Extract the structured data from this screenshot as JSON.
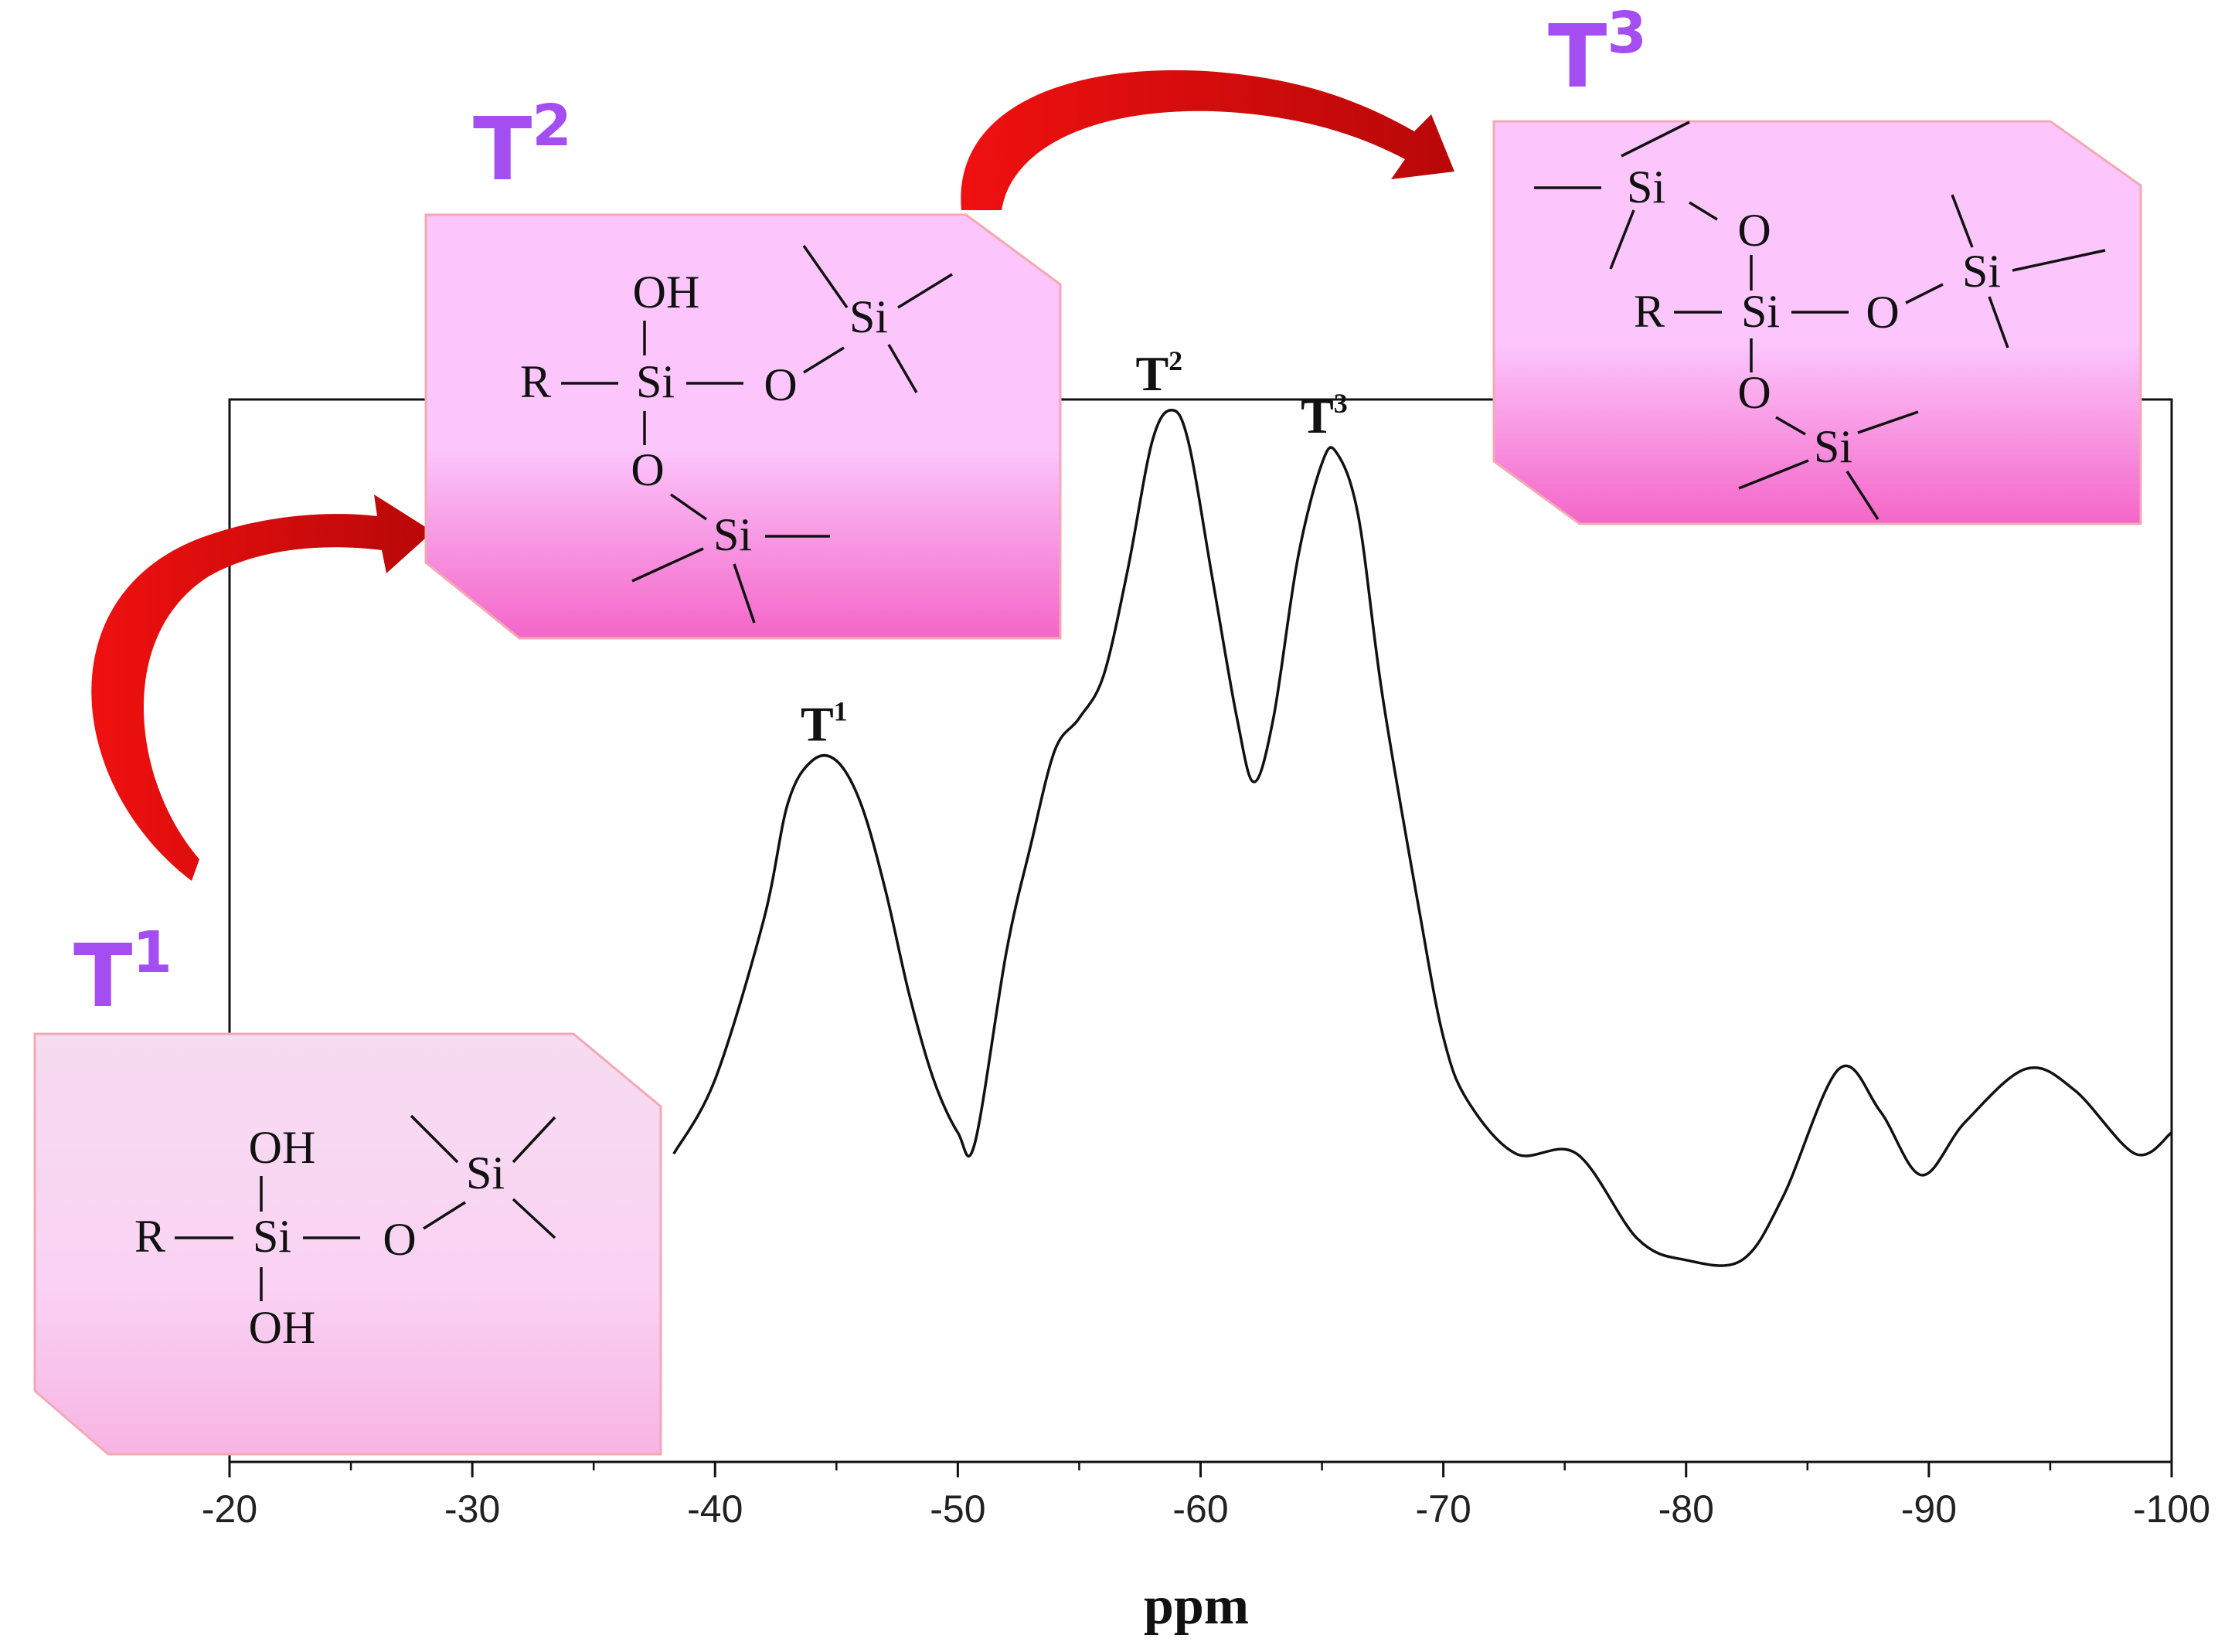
{
  "chart_data": {
    "type": "line",
    "title": "",
    "xlabel": "ppm",
    "ylabel": "",
    "xlim": [
      -20,
      -100
    ],
    "x_reversed_visual": true,
    "xticks": [
      -20,
      -30,
      -40,
      -50,
      -60,
      -70,
      -80,
      -90,
      -100
    ],
    "xtick_labels": [
      "-20",
      "-30",
      "-40",
      "-50",
      "-60",
      "-70",
      "-80",
      "-90",
      "-100"
    ],
    "grid": false,
    "legend": "none",
    "series": [
      {
        "x": [
          -38.3,
          -40,
          -42,
          -43,
          -44,
          -45,
          -46,
          -47,
          -48,
          -49,
          -50,
          -50.7,
          -52,
          -53,
          -54,
          -55,
          -56,
          -57,
          -58,
          -58.8,
          -59.5,
          -60.5,
          -61.5,
          -62.2,
          -63,
          -64,
          -65,
          -65.6,
          -66.5,
          -67.5,
          -69,
          -70,
          -71,
          -73,
          -75.5,
          -78,
          -80,
          -82.3,
          -84,
          -86.3,
          -88,
          -89.7,
          -91.5,
          -94,
          -96,
          -98.5,
          -100
        ],
        "y": [
          0.29,
          0.36,
          0.51,
          0.62,
          0.66,
          0.66,
          0.62,
          0.54,
          0.44,
          0.36,
          0.31,
          0.3,
          0.48,
          0.58,
          0.67,
          0.7,
          0.74,
          0.84,
          0.96,
          0.99,
          0.96,
          0.83,
          0.7,
          0.64,
          0.7,
          0.85,
          0.94,
          0.95,
          0.89,
          0.72,
          0.52,
          0.4,
          0.34,
          0.29,
          0.29,
          0.21,
          0.19,
          0.19,
          0.25,
          0.37,
          0.33,
          0.27,
          0.32,
          0.37,
          0.35,
          0.29,
          0.31
        ]
      }
    ],
    "peak_labels": [
      {
        "main": "T",
        "sup": "1",
        "x": -45,
        "y": 0.66
      },
      {
        "main": "T",
        "sup": "2",
        "x": -58.8,
        "y": 0.99
      },
      {
        "main": "T",
        "sup": "3",
        "x": -65.6,
        "y": 0.95
      }
    ]
  },
  "structures": {
    "t1": {
      "label_main": "T",
      "label_sup": "1",
      "oh_top": "OH",
      "r": "R",
      "si_center": "Si",
      "o": "O",
      "si_side": "Si",
      "oh_bottom": "OH"
    },
    "t2": {
      "label_main": "T",
      "label_sup": "2",
      "oh_top": "OH",
      "r": "R",
      "si_center": "Si",
      "o_right": "O",
      "si_right": "Si",
      "o_bottom": "O",
      "si_bottom": "Si"
    },
    "t3": {
      "label_main": "T",
      "label_sup": "3",
      "si_top": "Si",
      "o_top": "O",
      "r": "R",
      "si_center": "Si",
      "o_right": "O",
      "si_right": "Si",
      "o_bottom": "O",
      "si_bottom": "Si"
    }
  },
  "colors": {
    "curve": "#111111",
    "box_fill_top": "#fcc6fc",
    "box_fill_bottom": "#f466c8",
    "box_border": "#f3a9b3",
    "arrow": "#e51818",
    "t_label": "#a44df0"
  }
}
